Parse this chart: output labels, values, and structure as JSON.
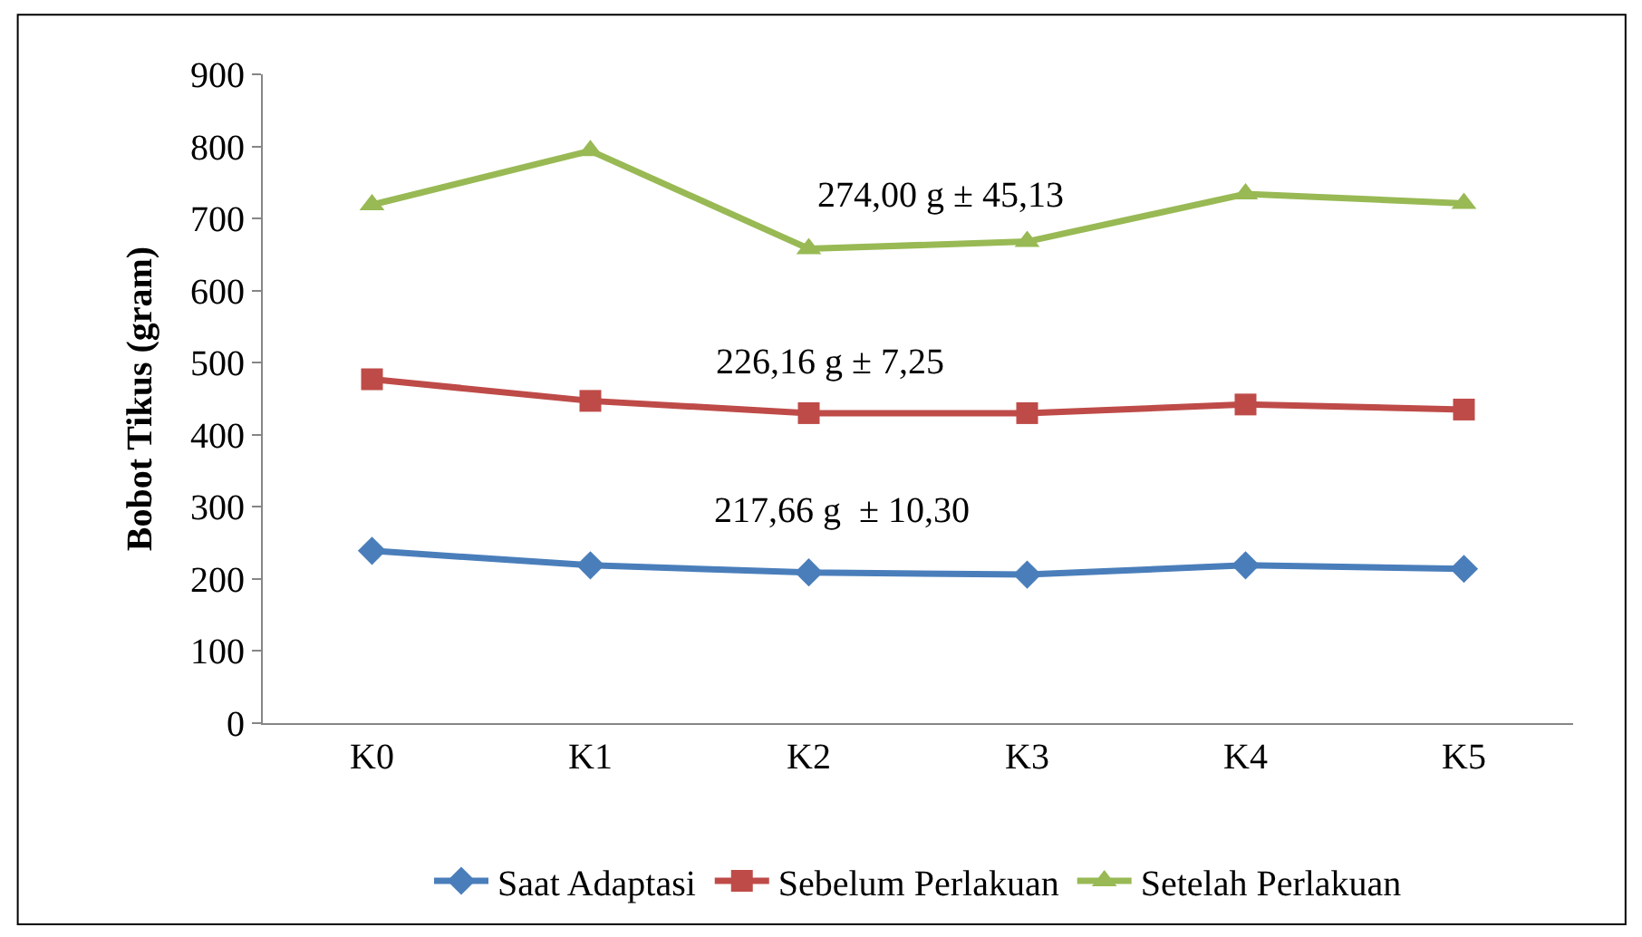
{
  "chart_data": {
    "type": "line",
    "ylabel": "Bobot Tikus (gram)",
    "categories": [
      "K0",
      "K1",
      "K2",
      "K3",
      "K4",
      "K5"
    ],
    "ylim": [
      0,
      900
    ],
    "yticks": [
      0,
      100,
      200,
      300,
      400,
      500,
      600,
      700,
      800,
      900
    ],
    "legend": "bottom",
    "line_style": "solid",
    "series": [
      {
        "name": "Saat Adaptasi",
        "color": "#4a7ebb",
        "marker": "diamond",
        "values": [
          239,
          219,
          209,
          206,
          219,
          214
        ]
      },
      {
        "name": "Sebelum Perlakuan",
        "color": "#be4b48",
        "marker": "square",
        "values": [
          477,
          447,
          430,
          430,
          442,
          435
        ]
      },
      {
        "name": "Setelah Perlakuan",
        "color": "#98b954",
        "marker": "triangle",
        "values": [
          719,
          794,
          658,
          668,
          734,
          721
        ]
      }
    ],
    "annotations": [
      "274,00 g ± 45,13",
      "226,16 g ± 7,25",
      "217,66 g  ± 10,30"
    ]
  }
}
